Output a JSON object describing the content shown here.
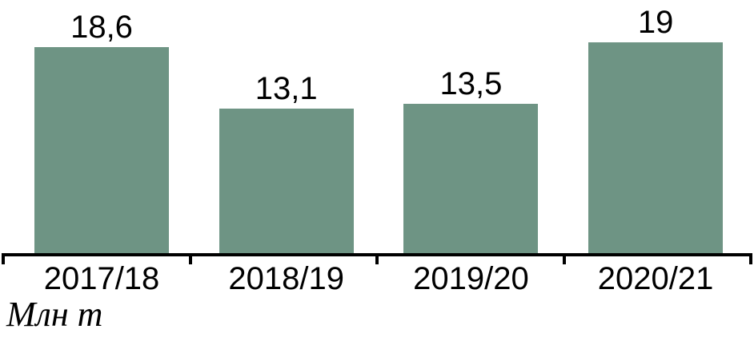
{
  "chart_data": {
    "type": "bar",
    "categories": [
      "2017/18",
      "2018/19",
      "2019/20",
      "2020/21"
    ],
    "values": [
      18.6,
      13.1,
      13.5,
      19
    ],
    "value_labels": [
      "18,6",
      "13,1",
      "13,5",
      "19"
    ],
    "title": "",
    "xlabel": "",
    "ylabel": "Млн т",
    "ylim": [
      0,
      22
    ],
    "grid": false,
    "legend": false,
    "bar_color": "#6e9484",
    "axis_color": "#000000",
    "text_color": "#000000",
    "value_label_position": "above-bars",
    "unit_label_position": "bottom-left",
    "decimal_separator": ","
  }
}
